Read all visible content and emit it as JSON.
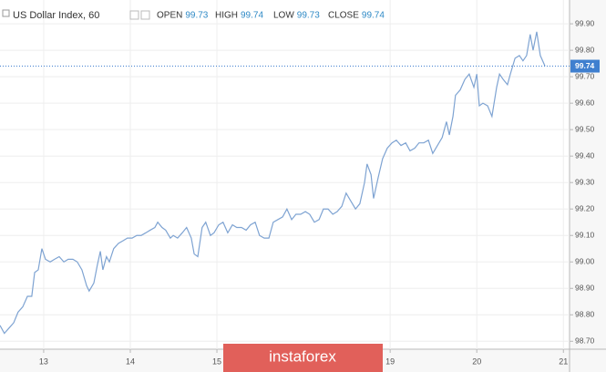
{
  "chart_data": {
    "type": "line",
    "title": "US Dollar Index, 60",
    "ohlc": [
      {
        "label": "OPEN",
        "value": 99.73
      },
      {
        "label": "HIGH",
        "value": 99.74
      },
      {
        "label": "LOW",
        "value": 99.73
      },
      {
        "label": "CLOSE",
        "value": 99.74
      }
    ],
    "last_price": 99.74,
    "watermark": "instaforex",
    "color": "#7ea3d2",
    "grid": true,
    "xlim": [
      -12.1,
      145.7
    ],
    "ylim": [
      98.67,
      99.99
    ],
    "xticks": [
      {
        "value": 0,
        "label": "13"
      },
      {
        "value": 24,
        "label": "14"
      },
      {
        "value": 48,
        "label": "15"
      },
      {
        "value": 96,
        "label": "19"
      },
      {
        "value": 120,
        "label": "20"
      },
      {
        "value": 144,
        "label": "21"
      }
    ],
    "yticks": [
      {
        "value": 98.7,
        "label": "98.70"
      },
      {
        "value": 98.8,
        "label": "98.80"
      },
      {
        "value": 98.9,
        "label": "98.90"
      },
      {
        "value": 99.0,
        "label": "99.00"
      },
      {
        "value": 99.1,
        "label": "99.10"
      },
      {
        "value": 99.2,
        "label": "99.20"
      },
      {
        "value": 99.3,
        "label": "99.30"
      },
      {
        "value": 99.4,
        "label": "99.40"
      },
      {
        "value": 99.5,
        "label": "99.50"
      },
      {
        "value": 99.6,
        "label": "99.60"
      },
      {
        "value": 99.7,
        "label": "99.70"
      },
      {
        "value": 99.8,
        "label": "99.80"
      },
      {
        "value": 99.9,
        "label": "99.90"
      }
    ],
    "x": [
      -12.1,
      -10.9,
      -9.6,
      -8.3,
      -7.1,
      -5.8,
      -4.5,
      -3.3,
      -2.5,
      -1.5,
      -0.5,
      0.5,
      1.8,
      3.0,
      4.3,
      5.6,
      6.8,
      8.1,
      9.3,
      10.6,
      11.9,
      12.6,
      13.9,
      14.9,
      15.7,
      16.4,
      17.4,
      18.2,
      19.4,
      20.7,
      22.0,
      23.2,
      24.5,
      25.8,
      27.0,
      28.3,
      29.5,
      30.8,
      31.6,
      32.8,
      33.8,
      35.1,
      35.9,
      37.1,
      38.4,
      39.6,
      40.9,
      41.7,
      42.7,
      43.9,
      44.9,
      46.2,
      47.2,
      48.5,
      49.7,
      51.0,
      52.3,
      53.5,
      54.8,
      56.1,
      57.3,
      58.6,
      59.8,
      61.1,
      62.4,
      63.6,
      64.9,
      66.2,
      67.4,
      68.7,
      69.9,
      71.2,
      72.5,
      73.7,
      75.0,
      76.3,
      77.5,
      78.8,
      80.1,
      81.3,
      82.6,
      83.8,
      85.1,
      86.4,
      87.6,
      88.9,
      89.6,
      90.7,
      91.4,
      92.7,
      93.9,
      95.2,
      96.5,
      97.7,
      99.0,
      100.3,
      101.5,
      102.8,
      104.0,
      105.3,
      106.6,
      107.8,
      109.1,
      110.4,
      111.6,
      112.4,
      113.4,
      114.1,
      115.4,
      116.7,
      117.9,
      119.2,
      120.0,
      120.7,
      121.7,
      123.0,
      124.2,
      125.5,
      126.3,
      127.3,
      128.5,
      129.3,
      130.6,
      131.8,
      132.8,
      133.8,
      134.8,
      135.6,
      136.6,
      137.6,
      138.9
    ],
    "values": [
      98.76,
      98.73,
      98.75,
      98.77,
      98.81,
      98.83,
      98.87,
      98.87,
      98.96,
      98.97,
      99.05,
      99.01,
      99.0,
      99.01,
      99.02,
      99.0,
      99.01,
      99.01,
      99.0,
      98.97,
      98.91,
      98.89,
      98.92,
      98.99,
      99.04,
      98.97,
      99.02,
      99.0,
      99.05,
      99.07,
      99.08,
      99.09,
      99.09,
      99.1,
      99.1,
      99.11,
      99.12,
      99.13,
      99.15,
      99.13,
      99.12,
      99.09,
      99.1,
      99.09,
      99.11,
      99.13,
      99.09,
      99.03,
      99.02,
      99.13,
      99.15,
      99.1,
      99.11,
      99.14,
      99.15,
      99.11,
      99.14,
      99.13,
      99.13,
      99.12,
      99.14,
      99.15,
      99.1,
      99.09,
      99.09,
      99.15,
      99.16,
      99.17,
      99.2,
      99.16,
      99.18,
      99.18,
      99.19,
      99.18,
      99.15,
      99.16,
      99.2,
      99.2,
      99.18,
      99.19,
      99.21,
      99.26,
      99.23,
      99.2,
      99.22,
      99.3,
      99.37,
      99.33,
      99.24,
      99.32,
      99.39,
      99.43,
      99.45,
      99.46,
      99.44,
      99.45,
      99.42,
      99.43,
      99.45,
      99.45,
      99.46,
      99.41,
      99.44,
      99.47,
      99.53,
      99.48,
      99.55,
      99.63,
      99.65,
      99.69,
      99.71,
      99.66,
      99.71,
      99.59,
      99.6,
      99.59,
      99.55,
      99.66,
      99.71,
      99.69,
      99.67,
      99.71,
      99.77,
      99.78,
      99.76,
      99.78,
      99.86,
      99.8,
      99.87,
      99.78,
      99.74
    ]
  }
}
